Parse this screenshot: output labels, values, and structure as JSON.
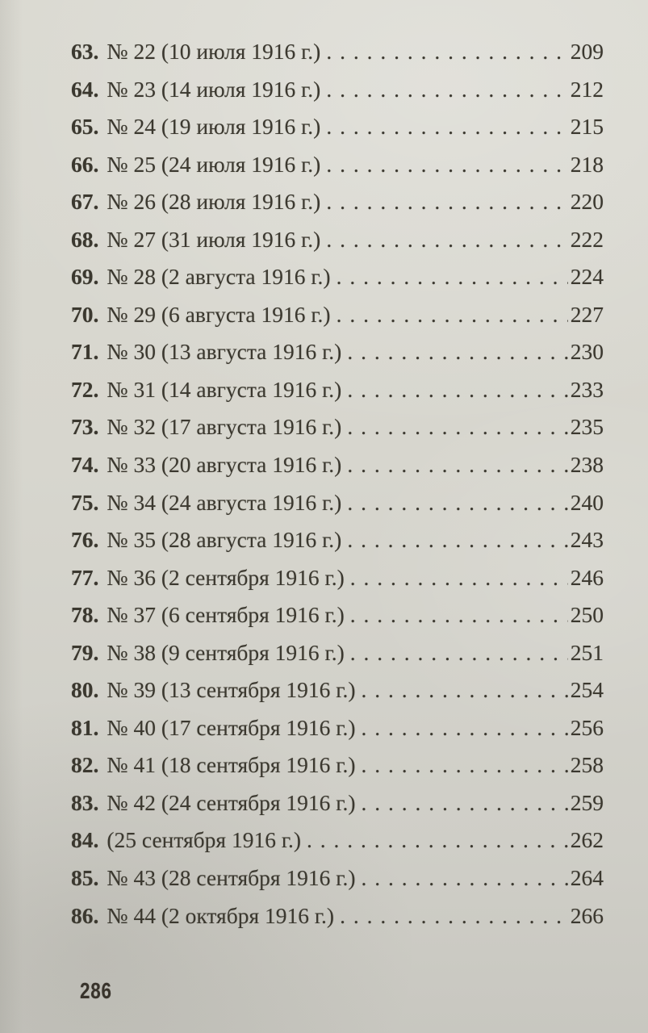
{
  "folio": "286",
  "toc_entries": [
    {
      "num": "63.",
      "title": "№ 22 (10 июля 1916 г.)",
      "page": "209"
    },
    {
      "num": "64.",
      "title": "№ 23 (14 июля 1916 г.)",
      "page": "212"
    },
    {
      "num": "65.",
      "title": "№ 24 (19 июля 1916 г.)",
      "page": "215"
    },
    {
      "num": "66.",
      "title": "№ 25 (24 июля 1916 г.)",
      "page": "218"
    },
    {
      "num": "67.",
      "title": "№ 26 (28 июля 1916 г.)",
      "page": "220"
    },
    {
      "num": "68.",
      "title": "№ 27 (31 июля 1916 г.)",
      "page": "222"
    },
    {
      "num": "69.",
      "title": "№ 28 (2 августа 1916 г.)",
      "page": "224"
    },
    {
      "num": "70.",
      "title": "№ 29 (6 августа 1916 г.)",
      "page": "227"
    },
    {
      "num": "71.",
      "title": "№ 30 (13 августа 1916 г.)",
      "page": "230"
    },
    {
      "num": "72.",
      "title": "№ 31 (14 августа 1916 г.)",
      "page": "233"
    },
    {
      "num": "73.",
      "title": "№ 32 (17 августа 1916 г.)",
      "page": "235"
    },
    {
      "num": "74.",
      "title": "№ 33 (20 августа 1916 г.)",
      "page": "238"
    },
    {
      "num": "75.",
      "title": "№ 34 (24 августа 1916 г.)",
      "page": "240"
    },
    {
      "num": "76.",
      "title": "№ 35 (28 августа 1916 г.)",
      "page": "243"
    },
    {
      "num": "77.",
      "title": "№ 36 (2 сентября 1916 г.)",
      "page": "246"
    },
    {
      "num": "78.",
      "title": "№ 37 (6 сентября 1916 г.)",
      "page": "250"
    },
    {
      "num": "79.",
      "title": "№ 38 (9 сентября 1916 г.)",
      "page": "251"
    },
    {
      "num": "80.",
      "title": "№ 39 (13 сентября 1916 г.)",
      "page": "254"
    },
    {
      "num": "81.",
      "title": "№ 40 (17 сентября 1916 г.)",
      "page": "256"
    },
    {
      "num": "82.",
      "title": "№ 41 (18 сентября 1916 г.)",
      "page": "258"
    },
    {
      "num": "83.",
      "title": "№ 42 (24 сентября 1916 г.)",
      "page": "259"
    },
    {
      "num": "84.",
      "title": "(25 сентября 1916 г.)",
      "page": "262"
    },
    {
      "num": "85.",
      "title": "№ 43 (28 сентября 1916 г.)",
      "page": "264"
    },
    {
      "num": "86.",
      "title": "№ 44 (2 октября 1916 г.)",
      "page": "266"
    }
  ]
}
